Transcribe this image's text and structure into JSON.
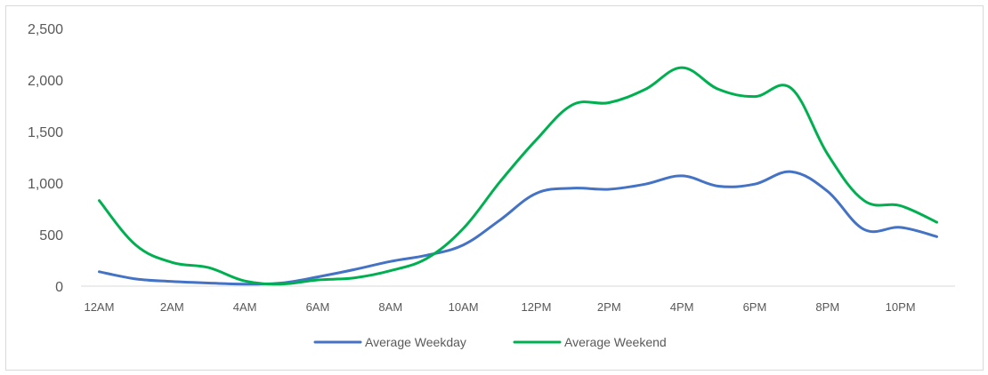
{
  "chart_data": {
    "type": "line",
    "title": "",
    "xlabel": "",
    "ylabel": "",
    "ylim": [
      0,
      2500
    ],
    "y_ticks": [
      "0",
      "500",
      "1,000",
      "1,500",
      "2,000",
      "2,500"
    ],
    "x_tick_labels": [
      "12AM",
      "2AM",
      "4AM",
      "6AM",
      "8AM",
      "10AM",
      "12PM",
      "2PM",
      "4PM",
      "6PM",
      "8PM",
      "10PM"
    ],
    "grid": false,
    "legend_position": "bottom",
    "x": [
      "12AM",
      "1AM",
      "2AM",
      "3AM",
      "4AM",
      "5AM",
      "6AM",
      "7AM",
      "8AM",
      "9AM",
      "10AM",
      "11AM",
      "12PM",
      "1PM",
      "2PM",
      "3PM",
      "4PM",
      "5PM",
      "6PM",
      "7PM",
      "8PM",
      "9PM",
      "10PM",
      "11PM"
    ],
    "series": [
      {
        "name": "Average Weekday",
        "color": "#4472c4",
        "values": [
          140,
          70,
          45,
          30,
          20,
          30,
          90,
          160,
          240,
          300,
          400,
          640,
          900,
          950,
          940,
          990,
          1070,
          970,
          990,
          1110,
          920,
          550,
          570,
          480
        ]
      },
      {
        "name": "Average Weekend",
        "color": "#00b050",
        "values": [
          830,
          400,
          230,
          180,
          50,
          20,
          60,
          80,
          150,
          270,
          560,
          1010,
          1420,
          1760,
          1780,
          1910,
          2120,
          1910,
          1840,
          1920,
          1280,
          830,
          780,
          620
        ]
      }
    ]
  }
}
